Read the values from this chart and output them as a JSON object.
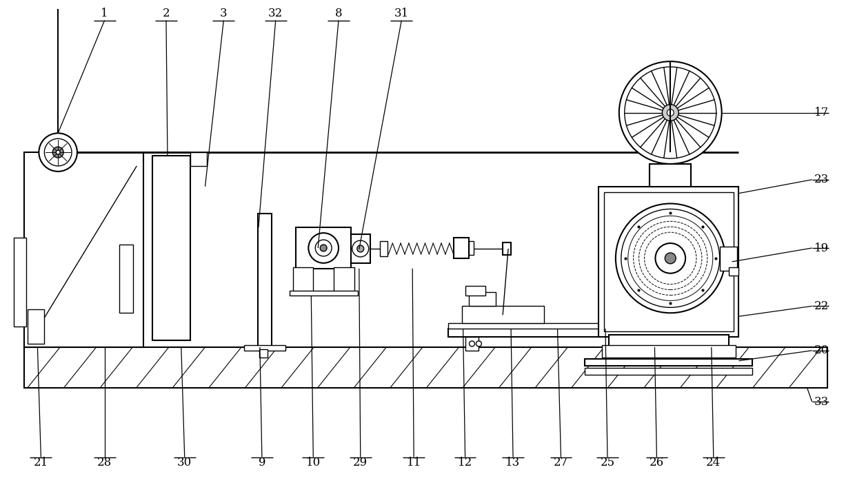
{
  "bg_color": "#ffffff",
  "line_color": "#000000",
  "fig_width": 12.4,
  "fig_height": 7.2,
  "lw": 1.0,
  "lw2": 1.5,
  "lw3": 2.0
}
